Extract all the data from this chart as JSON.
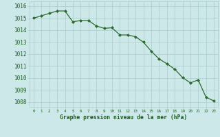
{
  "x": [
    0,
    1,
    2,
    3,
    4,
    5,
    6,
    7,
    8,
    9,
    10,
    11,
    12,
    13,
    14,
    15,
    16,
    17,
    18,
    19,
    20,
    21,
    22,
    23
  ],
  "y": [
    1015.0,
    1015.2,
    1015.4,
    1015.6,
    1015.6,
    1014.7,
    1014.8,
    1014.8,
    1014.35,
    1014.15,
    1014.2,
    1013.6,
    1013.6,
    1013.45,
    1013.0,
    1012.25,
    1011.6,
    1011.2,
    1010.75,
    1010.05,
    1009.6,
    1009.85,
    1008.4,
    1008.1
  ],
  "line_color": "#2d6a2d",
  "marker": "D",
  "marker_size": 2.0,
  "bg_color": "#cce8e8",
  "grid_color": "#aacccc",
  "title": "Graphe pression niveau de la mer (hPa)",
  "title_color": "#1a5c1a",
  "tick_color": "#1a5c1a",
  "ylabel_min": 1008,
  "ylabel_max": 1016,
  "xlim": [
    -0.5,
    23.5
  ],
  "ylim": [
    1007.6,
    1016.4
  ]
}
